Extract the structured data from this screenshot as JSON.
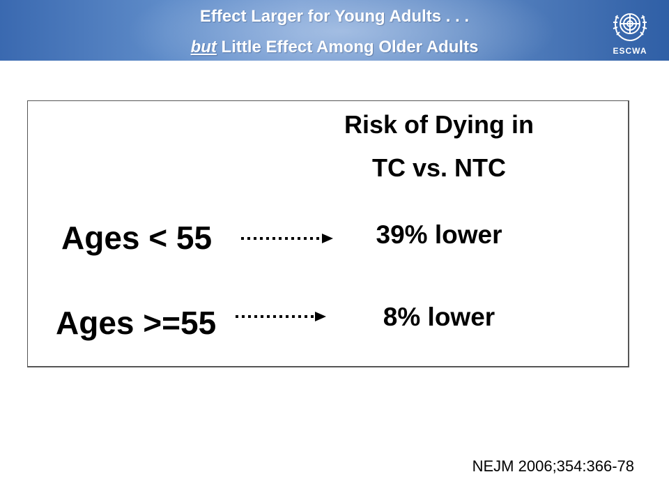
{
  "slide": {
    "title_line1": "Effect Larger for Young Adults . . .",
    "title_line2_emphasis": "but",
    "title_line2_rest": " Little Effect Among Older Adults",
    "logo_text": "ESCWA",
    "logo_icon": "un-emblem-icon",
    "header_line1": "Risk of Dying in",
    "header_line2": "TC vs. NTC",
    "rows": [
      {
        "label": "Ages < 55",
        "value": "39% lower",
        "arrow_icon": "dotted-arrow-right-icon"
      },
      {
        "label": "Ages >=55",
        "value": "8% lower",
        "arrow_icon": "dotted-arrow-right-icon"
      }
    ],
    "footnote": "NEJM 2006;354:366-78"
  },
  "colors": {
    "banner": "#5f8cc9",
    "banner_text": "#ffffff",
    "body_text": "#000000",
    "border": "#555555"
  }
}
